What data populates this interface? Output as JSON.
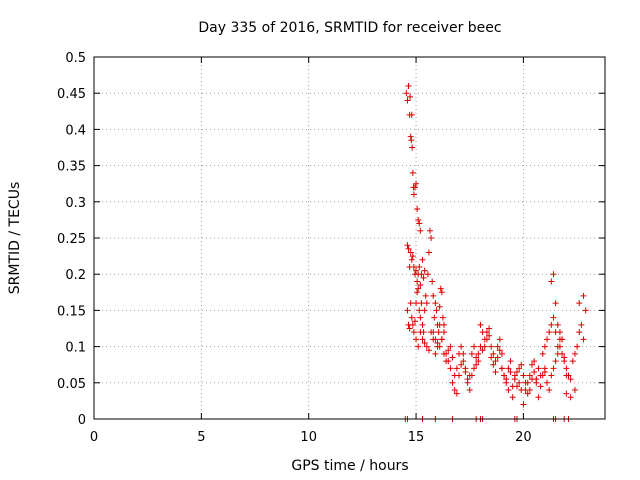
{
  "chart_data": {
    "type": "scatter",
    "title": "Day 335 of 2016, SRMTID for receiver beec",
    "xlabel": "GPS time / hours",
    "ylabel": "SRMTID / TECUs",
    "xlim": [
      0,
      23.8
    ],
    "ylim": [
      0,
      0.5
    ],
    "x_ticks": [
      0,
      5,
      10,
      15,
      20
    ],
    "x_tick_labels": [
      "0",
      "5",
      "10",
      "15",
      "20"
    ],
    "y_ticks": [
      0,
      0.05,
      0.1,
      0.15,
      0.2,
      0.25,
      0.3,
      0.35,
      0.4,
      0.45,
      0.5
    ],
    "y_tick_labels": [
      "0",
      "0.05",
      "0.1",
      "0.15",
      "0.2",
      "0.25",
      "0.3",
      "0.35",
      "0.4",
      "0.45",
      "0.5"
    ],
    "grid": true,
    "marker": "+",
    "color": "#e00000",
    "series": [
      {
        "name": "SRMTID",
        "x": [
          14.55,
          14.6,
          14.65,
          14.7,
          14.72,
          14.75,
          14.78,
          14.8,
          14.82,
          14.85,
          14.88,
          14.9,
          14.95,
          15.0,
          15.05,
          15.1,
          15.15,
          15.2,
          14.6,
          14.65,
          14.7,
          14.75,
          14.8,
          14.85,
          14.9,
          14.95,
          15.0,
          15.05,
          15.1,
          15.15,
          15.2,
          15.25,
          15.3,
          15.35,
          15.4,
          14.6,
          14.65,
          14.7,
          14.75,
          14.8,
          14.85,
          14.9,
          14.95,
          15.0,
          15.05,
          15.1,
          15.15,
          15.2,
          15.25,
          15.3,
          15.35,
          15.4,
          15.45,
          15.5,
          15.55,
          15.6,
          15.65,
          15.7,
          15.75,
          15.8,
          15.85,
          15.9,
          15.95,
          16.0,
          16.05,
          16.1,
          16.15,
          16.2,
          16.25,
          16.3,
          15.0,
          15.1,
          15.2,
          15.3,
          15.4,
          15.5,
          15.6,
          15.7,
          15.8,
          15.9,
          16.0,
          16.1,
          16.2,
          16.3,
          16.4,
          15.8,
          15.9,
          16.0,
          16.1,
          16.2,
          16.3,
          16.4,
          16.5,
          16.6,
          16.7,
          16.8,
          16.9,
          17.0,
          17.1,
          17.2,
          17.3,
          17.4,
          17.5,
          17.6,
          17.7,
          17.8,
          17.9,
          16.5,
          16.6,
          16.7,
          16.8,
          16.9,
          17.0,
          17.1,
          17.2,
          17.3,
          17.4,
          17.5,
          17.6,
          17.7,
          17.8,
          17.9,
          18.0,
          18.1,
          18.2,
          18.3,
          18.4,
          18.5,
          18.6,
          18.7,
          18.8,
          18.9,
          19.0,
          18.0,
          18.1,
          18.2,
          18.3,
          18.4,
          18.5,
          18.6,
          18.7,
          18.8,
          18.9,
          19.0,
          19.1,
          19.2,
          19.3,
          19.4,
          19.5,
          19.6,
          19.7,
          19.8,
          19.9,
          19.0,
          19.1,
          19.2,
          19.3,
          19.4,
          19.5,
          19.6,
          19.7,
          19.8,
          19.9,
          20.0,
          20.1,
          20.2,
          20.3,
          20.4,
          20.5,
          20.6,
          20.7,
          20.8,
          20.9,
          21.0,
          20.0,
          20.1,
          20.2,
          20.3,
          20.4,
          20.5,
          20.6,
          20.7,
          20.8,
          20.9,
          21.0,
          21.1,
          21.2,
          21.3,
          21.4,
          21.5,
          21.6,
          21.7,
          21.8,
          21.9,
          22.0,
          21.0,
          21.1,
          21.2,
          21.3,
          21.4,
          21.5,
          21.6,
          21.7,
          21.8,
          21.9,
          22.0,
          22.1,
          22.2,
          22.3,
          22.4,
          22.5,
          22.6,
          22.7,
          22.8,
          22.9,
          21.3,
          21.4,
          21.5,
          21.6,
          21.7,
          21.8,
          22.0,
          22.2,
          22.4,
          22.6,
          22.8,
          14.5,
          14.6,
          15.3,
          15.9,
          16.7,
          17.8,
          18.0,
          18.1,
          19.6,
          19.7,
          21.4,
          21.5,
          21.9,
          22.1
        ],
        "y": [
          0.45,
          0.44,
          0.46,
          0.42,
          0.445,
          0.39,
          0.385,
          0.42,
          0.375,
          0.34,
          0.32,
          0.31,
          0.32,
          0.325,
          0.29,
          0.275,
          0.27,
          0.26,
          0.24,
          0.235,
          0.21,
          0.23,
          0.22,
          0.225,
          0.21,
          0.2,
          0.205,
          0.19,
          0.2,
          0.21,
          0.185,
          0.2,
          0.22,
          0.195,
          0.205,
          0.15,
          0.13,
          0.125,
          0.16,
          0.14,
          0.13,
          0.12,
          0.135,
          0.16,
          0.175,
          0.18,
          0.15,
          0.14,
          0.16,
          0.13,
          0.12,
          0.15,
          0.17,
          0.16,
          0.2,
          0.23,
          0.26,
          0.25,
          0.19,
          0.17,
          0.14,
          0.16,
          0.15,
          0.13,
          0.12,
          0.155,
          0.18,
          0.175,
          0.14,
          0.13,
          0.11,
          0.1,
          0.12,
          0.11,
          0.105,
          0.1,
          0.095,
          0.12,
          0.11,
          0.09,
          0.105,
          0.1,
          0.11,
          0.12,
          0.09,
          0.12,
          0.11,
          0.1,
          0.13,
          0.11,
          0.09,
          0.08,
          0.095,
          0.1,
          0.085,
          0.06,
          0.07,
          0.09,
          0.1,
          0.08,
          0.07,
          0.05,
          0.06,
          0.09,
          0.1,
          0.075,
          0.08,
          0.08,
          0.07,
          0.05,
          0.04,
          0.035,
          0.06,
          0.075,
          0.09,
          0.065,
          0.055,
          0.04,
          0.06,
          0.07,
          0.085,
          0.09,
          0.1,
          0.095,
          0.11,
          0.12,
          0.115,
          0.1,
          0.09,
          0.08,
          0.085,
          0.095,
          0.07,
          0.13,
          0.12,
          0.1,
          0.11,
          0.125,
          0.085,
          0.075,
          0.065,
          0.1,
          0.11,
          0.09,
          0.06,
          0.055,
          0.07,
          0.08,
          0.045,
          0.06,
          0.065,
          0.05,
          0.04,
          0.07,
          0.06,
          0.05,
          0.04,
          0.065,
          0.03,
          0.055,
          0.045,
          0.07,
          0.075,
          0.06,
          0.05,
          0.035,
          0.04,
          0.055,
          0.065,
          0.05,
          0.03,
          0.045,
          0.06,
          0.07,
          0.02,
          0.04,
          0.05,
          0.06,
          0.075,
          0.08,
          0.055,
          0.07,
          0.06,
          0.09,
          0.065,
          0.05,
          0.04,
          0.06,
          0.07,
          0.08,
          0.09,
          0.1,
          0.11,
          0.085,
          0.06,
          0.1,
          0.11,
          0.12,
          0.13,
          0.14,
          0.12,
          0.1,
          0.11,
          0.09,
          0.08,
          0.07,
          0.06,
          0.055,
          0.08,
          0.09,
          0.1,
          0.12,
          0.13,
          0.11,
          0.15,
          0.19,
          0.2,
          0.16,
          0.13,
          0.12,
          0.11,
          0.035,
          0.03,
          0.04,
          0.16,
          0.17,
          0,
          0,
          0,
          0,
          0,
          0,
          0,
          0,
          0,
          0,
          0,
          0,
          0,
          0
        ]
      }
    ]
  }
}
